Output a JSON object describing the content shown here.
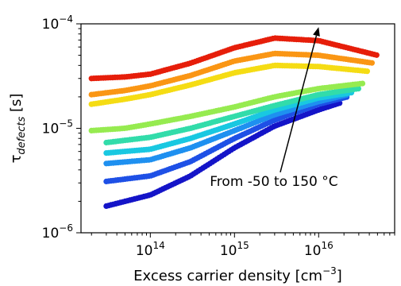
{
  "chart_data": {
    "type": "scatter",
    "xlabel": "Excess carrier density [cm",
    "xlabel_sup": "−3",
    "xlabel_end": "]",
    "ylabel_symbol": "τ",
    "ylabel_sub": "defects",
    "ylabel_unit": " [s]",
    "x_scale": "log",
    "y_scale": "log",
    "xlim": [
      15000000000000.0,
      8e+16
    ],
    "ylim": [
      1e-06,
      0.0001
    ],
    "grid": false,
    "x_ticks": [
      {
        "value": 100000000000000.0,
        "base": "10",
        "exp": "14"
      },
      {
        "value": 1000000000000000.0,
        "base": "10",
        "exp": "15"
      },
      {
        "value": 1e+16,
        "base": "10",
        "exp": "16"
      }
    ],
    "y_ticks": [
      {
        "value": 1e-06,
        "base": "10",
        "exp": "−6"
      },
      {
        "value": 1e-05,
        "base": "10",
        "exp": "−5"
      },
      {
        "value": 0.0001,
        "base": "10",
        "exp": "−4"
      }
    ],
    "annotation": {
      "text": "From -50 to 150 °C",
      "arrow_from": [
        3500000000000000.0,
        3.8e-06
      ],
      "arrow_to": [
        1e+16,
        9.3e-05
      ]
    },
    "series": [
      {
        "color": "#1414c8",
        "x_range": [
          30000000000000.0,
          1.8e+16
        ],
        "points": [
          [
            30000000000000.0,
            1.8e-06
          ],
          [
            100000000000000.0,
            2.3e-06
          ],
          [
            300000000000000.0,
            3.5e-06
          ],
          [
            1000000000000000.0,
            6.5e-06
          ],
          [
            3000000000000000.0,
            1.05e-05
          ],
          [
            1e+16,
            1.5e-05
          ],
          [
            1.8e+16,
            1.75e-05
          ]
        ]
      },
      {
        "color": "#1e50e6",
        "x_range": [
          30000000000000.0,
          2.2e+16
        ],
        "points": [
          [
            30000000000000.0,
            3.1e-06
          ],
          [
            100000000000000.0,
            3.5e-06
          ],
          [
            300000000000000.0,
            4.8e-06
          ],
          [
            1000000000000000.0,
            8e-06
          ],
          [
            3000000000000000.0,
            1.2e-05
          ],
          [
            1e+16,
            1.7e-05
          ],
          [
            2.2e+16,
            2e-05
          ]
        ]
      },
      {
        "color": "#1e90f0",
        "x_range": [
          30000000000000.0,
          2.2e+16
        ],
        "points": [
          [
            30000000000000.0,
            4.6e-06
          ],
          [
            100000000000000.0,
            5e-06
          ],
          [
            300000000000000.0,
            6.5e-06
          ],
          [
            1000000000000000.0,
            9.5e-06
          ],
          [
            3000000000000000.0,
            1.35e-05
          ],
          [
            1e+16,
            1.8e-05
          ],
          [
            2.2e+16,
            2.1e-05
          ]
        ]
      },
      {
        "color": "#19c8e1",
        "x_range": [
          30000000000000.0,
          2.5e+16
        ],
        "points": [
          [
            30000000000000.0,
            5.8e-06
          ],
          [
            100000000000000.0,
            6.3e-06
          ],
          [
            300000000000000.0,
            8e-06
          ],
          [
            1000000000000000.0,
            1.1e-05
          ],
          [
            3000000000000000.0,
            1.5e-05
          ],
          [
            1e+16,
            1.95e-05
          ],
          [
            2.5e+16,
            2.2e-05
          ]
        ]
      },
      {
        "color": "#32dcaa",
        "x_range": [
          30000000000000.0,
          3e+16
        ],
        "points": [
          [
            30000000000000.0,
            7.3e-06
          ],
          [
            100000000000000.0,
            8.2e-06
          ],
          [
            300000000000000.0,
            1e-05
          ],
          [
            1000000000000000.0,
            1.3e-05
          ],
          [
            3000000000000000.0,
            1.65e-05
          ],
          [
            1e+16,
            2.1e-05
          ],
          [
            3e+16,
            2.4e-05
          ]
        ]
      },
      {
        "color": "#96eb50",
        "x_range": [
          20000000000000.0,
          3.5e+16
        ],
        "points": [
          [
            20000000000000.0,
            9.5e-06
          ],
          [
            50000000000000.0,
            1e-05
          ],
          [
            100000000000000.0,
            1.1e-05
          ],
          [
            300000000000000.0,
            1.3e-05
          ],
          [
            1000000000000000.0,
            1.6e-05
          ],
          [
            3000000000000000.0,
            2e-05
          ],
          [
            1e+16,
            2.4e-05
          ],
          [
            3.5e+16,
            2.7e-05
          ]
        ]
      },
      {
        "color": "#f5dc14",
        "x_range": [
          20000000000000.0,
          4e+16
        ],
        "points": [
          [
            20000000000000.0,
            1.7e-05
          ],
          [
            50000000000000.0,
            1.9e-05
          ],
          [
            100000000000000.0,
            2.1e-05
          ],
          [
            300000000000000.0,
            2.6e-05
          ],
          [
            1000000000000000.0,
            3.4e-05
          ],
          [
            3000000000000000.0,
            4e-05
          ],
          [
            1e+16,
            3.9e-05
          ],
          [
            4e+16,
            3.5e-05
          ]
        ]
      },
      {
        "color": "#fa9614",
        "x_range": [
          20000000000000.0,
          4.5e+16
        ],
        "points": [
          [
            20000000000000.0,
            2.1e-05
          ],
          [
            50000000000000.0,
            2.3e-05
          ],
          [
            100000000000000.0,
            2.55e-05
          ],
          [
            300000000000000.0,
            3.2e-05
          ],
          [
            1000000000000000.0,
            4.4e-05
          ],
          [
            3000000000000000.0,
            5.2e-05
          ],
          [
            1e+16,
            5e-05
          ],
          [
            4.5e+16,
            4.2e-05
          ]
        ]
      },
      {
        "color": "#e61e0a",
        "x_range": [
          20000000000000.0,
          5e+16
        ],
        "points": [
          [
            20000000000000.0,
            3e-05
          ],
          [
            50000000000000.0,
            3.1e-05
          ],
          [
            100000000000000.0,
            3.3e-05
          ],
          [
            300000000000000.0,
            4.2e-05
          ],
          [
            1000000000000000.0,
            5.9e-05
          ],
          [
            3000000000000000.0,
            7.3e-05
          ],
          [
            1e+16,
            6.9e-05
          ],
          [
            5e+16,
            5e-05
          ]
        ]
      }
    ]
  }
}
